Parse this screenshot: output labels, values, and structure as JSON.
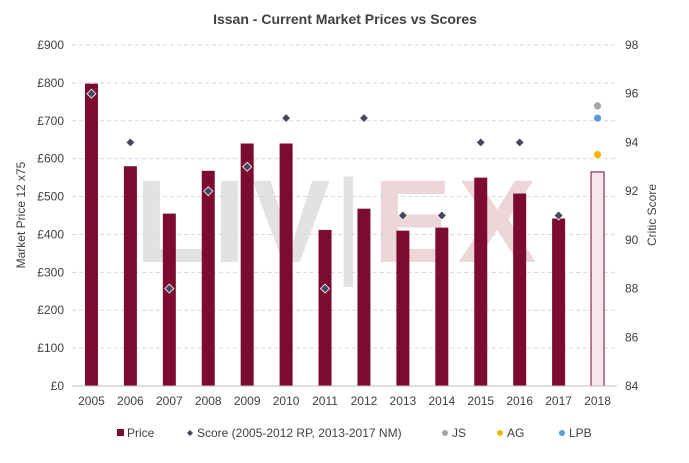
{
  "chart_data": {
    "type": "bar",
    "title": "Issan - Current Market Prices vs Scores",
    "ylabel": "Market Price 12 x75",
    "y2label": "Critic Score",
    "watermark": {
      "left": "LIV",
      "sep": "|",
      "right": "EX"
    },
    "categories": [
      "2005",
      "2006",
      "2007",
      "2008",
      "2009",
      "2010",
      "2011",
      "2012",
      "2013",
      "2014",
      "2015",
      "2016",
      "2017",
      "2018"
    ],
    "ylim": [
      0,
      900
    ],
    "y_ticks": [
      0,
      100,
      200,
      300,
      400,
      500,
      600,
      700,
      800,
      900
    ],
    "y_tick_labels": [
      "£0",
      "£100",
      "£200",
      "£300",
      "£400",
      "£500",
      "£600",
      "£700",
      "£800",
      "£900"
    ],
    "y2lim": [
      84,
      98
    ],
    "y2_ticks": [
      84,
      86,
      88,
      90,
      92,
      94,
      96,
      98
    ],
    "y2_tick_labels": [
      "84",
      "86",
      "88",
      "90",
      "92",
      "94",
      "96",
      "98"
    ],
    "grid": true,
    "legend_position": "bottom",
    "series": [
      {
        "name": "Price",
        "kind": "bar",
        "axis": "left",
        "color": "#7b0c30",
        "values": [
          798,
          580,
          455,
          568,
          640,
          640,
          412,
          468,
          410,
          418,
          550,
          508,
          442,
          565
        ],
        "outline_only_last": true,
        "outline_fill": "#f7e6ea"
      },
      {
        "name": "Score (2005-2012 RP, 2013-2017 NM)",
        "kind": "scatter",
        "marker": "diamond",
        "axis": "right",
        "color": "#44475f",
        "values": [
          96,
          94,
          88,
          92,
          93,
          95,
          88,
          95,
          91,
          91,
          94,
          94,
          91,
          null
        ]
      },
      {
        "name": "JS",
        "kind": "scatter",
        "marker": "circle",
        "axis": "right",
        "color": "#a6a6a6",
        "points": [
          {
            "x": "2018",
            "y": 95.5
          }
        ]
      },
      {
        "name": "AG",
        "kind": "scatter",
        "marker": "circle",
        "axis": "right",
        "color": "#f2b800",
        "points": [
          {
            "x": "2018",
            "y": 93.5
          }
        ]
      },
      {
        "name": "LPB",
        "kind": "scatter",
        "marker": "circle",
        "axis": "right",
        "color": "#5b9bd5",
        "points": [
          {
            "x": "2018",
            "y": 95
          }
        ]
      }
    ]
  }
}
